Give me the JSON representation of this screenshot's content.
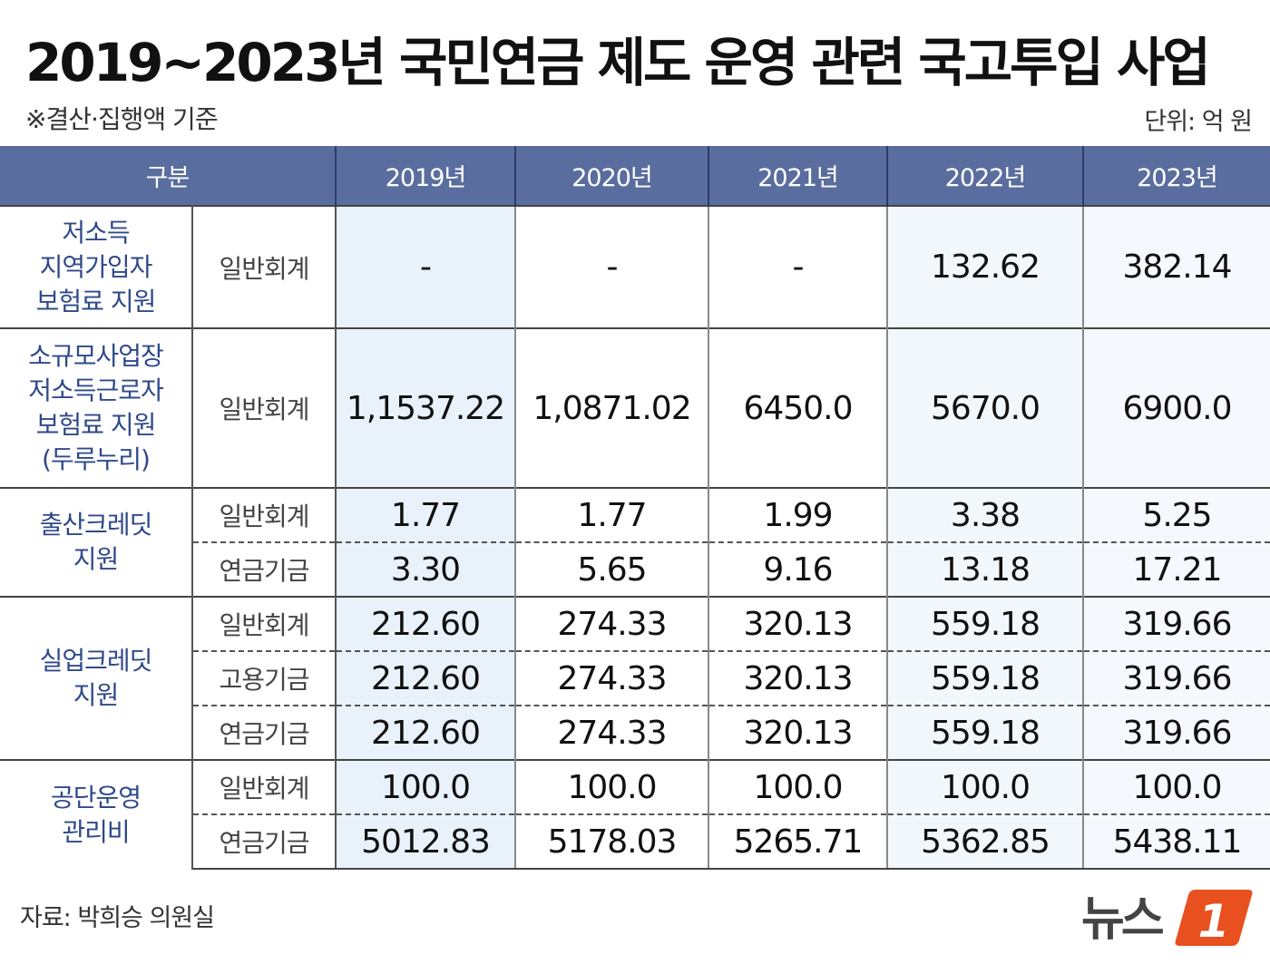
{
  "header": {
    "title": "2019~2023년 국민연금 제도 운영 관련 국고투입 사업",
    "note": "※결산·집행액 기준",
    "unit": "단위: 억 원"
  },
  "chart_data": {
    "type": "table",
    "columns": [
      "구분",
      "2019년",
      "2020년",
      "2021년",
      "2022년",
      "2023년"
    ],
    "groups": [
      {
        "category": [
          "저소득",
          "지역가입자",
          "보험료 지원"
        ],
        "rows": [
          {
            "label": "일반회계",
            "values": [
              "-",
              "-",
              "-",
              "132.62",
              "382.14"
            ]
          }
        ]
      },
      {
        "category": [
          "소규모사업장",
          "저소득근로자",
          "보험료 지원",
          "(두루누리)"
        ],
        "rows": [
          {
            "label": "일반회계",
            "values": [
              "1,1537.22",
              "1,0871.02",
              "6450.0",
              "5670.0",
              "6900.0"
            ]
          }
        ]
      },
      {
        "category": [
          "출산크레딧",
          "지원"
        ],
        "rows": [
          {
            "label": "일반회계",
            "values": [
              "1.77",
              "1.77",
              "1.99",
              "3.38",
              "5.25"
            ]
          },
          {
            "label": "연금기금",
            "values": [
              "3.30",
              "5.65",
              "9.16",
              "13.18",
              "17.21"
            ]
          }
        ]
      },
      {
        "category": [
          "실업크레딧",
          "지원"
        ],
        "rows": [
          {
            "label": "일반회계",
            "values": [
              "212.60",
              "274.33",
              "320.13",
              "559.18",
              "319.66"
            ]
          },
          {
            "label": "고용기금",
            "values": [
              "212.60",
              "274.33",
              "320.13",
              "559.18",
              "319.66"
            ]
          },
          {
            "label": "연금기금",
            "values": [
              "212.60",
              "274.33",
              "320.13",
              "559.18",
              "319.66"
            ]
          }
        ]
      },
      {
        "category": [
          "공단운영",
          "관리비"
        ],
        "rows": [
          {
            "label": "일반회계",
            "values": [
              "100.0",
              "100.0",
              "100.0",
              "100.0",
              "100.0"
            ]
          },
          {
            "label": "연금기금",
            "values": [
              "5012.83",
              "5178.03",
              "5265.71",
              "5362.85",
              "5438.11"
            ]
          }
        ]
      }
    ]
  },
  "footer": {
    "source": "자료: 박희승 의원실",
    "logo_text": "뉴스",
    "logo_number": "1",
    "logo_color": "#e8501f"
  }
}
